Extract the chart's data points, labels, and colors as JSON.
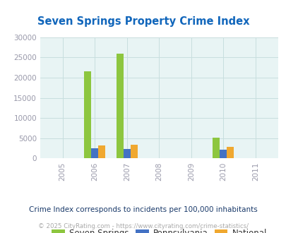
{
  "title": "Seven Springs Property Crime Index",
  "years": [
    2005,
    2006,
    2007,
    2008,
    2009,
    2010,
    2011
  ],
  "seven_springs": [
    0,
    21500,
    26000,
    0,
    0,
    5100,
    0
  ],
  "pennsylvania": [
    0,
    2500,
    2300,
    0,
    0,
    2100,
    0
  ],
  "national": [
    0,
    3300,
    3400,
    0,
    0,
    2900,
    0
  ],
  "bar_width": 0.22,
  "color_seven_springs": "#8dc63f",
  "color_pennsylvania": "#4472c4",
  "color_national": "#f0a830",
  "ylim": [
    0,
    30000
  ],
  "yticks": [
    0,
    5000,
    10000,
    15000,
    20000,
    25000,
    30000
  ],
  "plot_bg": "#e8f4f4",
  "title_color": "#1166bb",
  "tick_label_color": "#9999aa",
  "legend_labels": [
    "Seven Springs",
    "Pennsylvania",
    "National"
  ],
  "legend_text_color": "#333333",
  "subtitle": "Crime Index corresponds to incidents per 100,000 inhabitants",
  "subtitle_color": "#1a3a6a",
  "footer": "© 2025 CityRating.com - https://www.cityrating.com/crime-statistics/",
  "footer_color": "#aaaaaa",
  "grid_color": "#c8dede"
}
